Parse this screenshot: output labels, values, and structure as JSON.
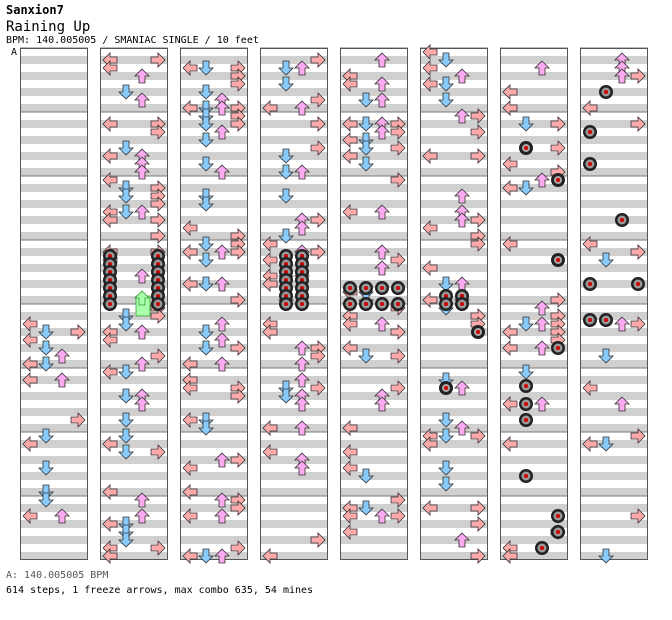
{
  "header": {
    "artist": "Sanxion7",
    "song": "Raining Up",
    "info": "BPM: 140.005005 / SMANIAC SINGLE / 10 feet",
    "marker": "A"
  },
  "footer": {
    "bpm_line": "A: 140.005005 BPM",
    "stats": "614 steps, 1 freeze arrows, max combo 635, 54 mines"
  },
  "colors": {
    "left": "#ffaaaa",
    "down": "#88ccff",
    "up": "#ffaaee",
    "right": "#ffaaaa",
    "freeze": "#aaffaa",
    "mine": "#555555",
    "band": "#d0d0d0"
  },
  "chart_data": {
    "type": "step-chart",
    "columns": 8,
    "lanes": [
      "left",
      "down",
      "up",
      "right"
    ],
    "note_icons": [
      "arrow-left",
      "arrow-down",
      "arrow-up",
      "arrow-right",
      "mine",
      "freeze-arrow"
    ]
  }
}
